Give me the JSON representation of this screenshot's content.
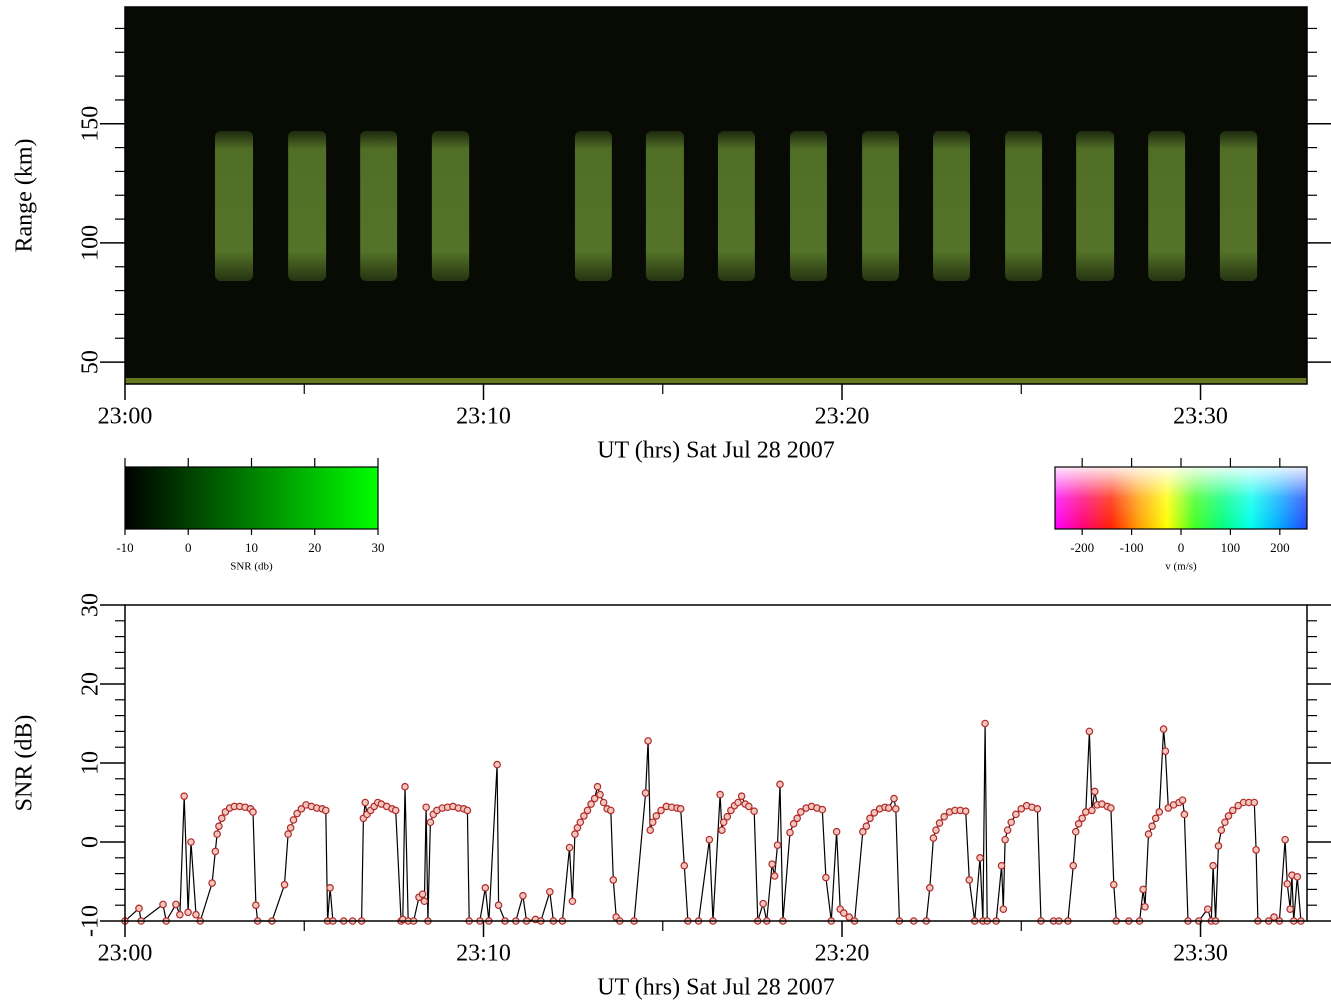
{
  "chart_data": [
    {
      "type": "heatmap",
      "xlabel": "UT (hrs) Sat Jul 28 2007",
      "ylabel": "Range (km)",
      "xlim": [
        0,
        32.97
      ],
      "xticks": [
        {
          "value": 0,
          "label": "23:00"
        },
        {
          "value": 10,
          "label": "23:10"
        },
        {
          "value": 20,
          "label": "23:20"
        },
        {
          "value": 30,
          "label": "23:30"
        }
      ],
      "xminorticks": [
        5,
        15,
        25
      ],
      "ylim": [
        40.8,
        199
      ],
      "yticks": [
        50,
        100,
        150
      ],
      "yminorticks": [
        60,
        70,
        80,
        90,
        110,
        120,
        130,
        140,
        160,
        170,
        180,
        190
      ],
      "background_color": "#070b04",
      "echo_color": "#5d7f2c",
      "echoes": [
        {
          "start": 2.51,
          "end": 3.57,
          "range": [
            84,
            147
          ]
        },
        {
          "start": 4.55,
          "end": 5.61,
          "range": [
            84,
            147
          ]
        },
        {
          "start": 6.56,
          "end": 7.59,
          "range": [
            84,
            147
          ]
        },
        {
          "start": 8.56,
          "end": 9.6,
          "range": [
            84,
            147
          ]
        },
        {
          "start": 12.55,
          "end": 13.58,
          "range": [
            84,
            147
          ]
        },
        {
          "start": 14.53,
          "end": 15.59,
          "range": [
            84,
            147
          ]
        },
        {
          "start": 16.54,
          "end": 17.57,
          "range": [
            84,
            147
          ]
        },
        {
          "start": 18.55,
          "end": 19.58,
          "range": [
            84,
            147
          ]
        },
        {
          "start": 20.56,
          "end": 21.59,
          "range": [
            84,
            147
          ]
        },
        {
          "start": 22.54,
          "end": 23.57,
          "range": [
            84,
            147
          ]
        },
        {
          "start": 24.55,
          "end": 25.58,
          "range": [
            84,
            147
          ]
        },
        {
          "start": 26.53,
          "end": 27.59,
          "range": [
            84,
            147
          ]
        },
        {
          "start": 28.54,
          "end": 29.57,
          "range": [
            84,
            147
          ]
        },
        {
          "start": 30.54,
          "end": 31.58,
          "range": [
            84,
            147
          ]
        }
      ],
      "colorbars": [
        {
          "label": "SNR (db)",
          "lim": [
            -10,
            30
          ],
          "ticks": [
            -10,
            0,
            10,
            20,
            30
          ],
          "colors": [
            "#000000",
            "#00ff00"
          ]
        },
        {
          "label": "v (m/s)",
          "lim": [
            -255,
            255
          ],
          "ticks": [
            -200,
            -100,
            0,
            100,
            200
          ],
          "colors": [
            "#ff00ff",
            "#ff0077",
            "#ff2000",
            "#ffa000",
            "#ffff00",
            "#40ff20",
            "#00ff80",
            "#00ffee",
            "#00aaff",
            "#2244ff"
          ]
        }
      ]
    },
    {
      "type": "line",
      "xlabel": "UT (hrs) Sat Jul 28 2007",
      "ylabel": "SNR (dB)",
      "xlim": [
        0,
        32.97
      ],
      "xticks": [
        {
          "value": 0,
          "label": "23:00"
        },
        {
          "value": 10,
          "label": "23:10"
        },
        {
          "value": 20,
          "label": "23:20"
        },
        {
          "value": 30,
          "label": "23:30"
        }
      ],
      "xminorticks": [
        5,
        15,
        25
      ],
      "ylim": [
        -10,
        30
      ],
      "yticks": [
        -10,
        0,
        10,
        20,
        30
      ],
      "yminorticks": [
        -8,
        -6,
        -4,
        -2,
        2,
        4,
        6,
        8,
        12,
        14,
        16,
        18,
        22,
        24,
        26,
        28
      ],
      "line_color": "#000000",
      "marker_color": "#b02a2a",
      "x": [
        0.0,
        0.39,
        0.45,
        1.06,
        1.15,
        1.42,
        1.53,
        1.65,
        1.76,
        1.84,
        1.98,
        2.1,
        2.43,
        2.52,
        2.57,
        2.62,
        2.7,
        2.8,
        2.92,
        3.05,
        3.2,
        3.35,
        3.5,
        3.57,
        3.65,
        3.7,
        4.1,
        4.45,
        4.55,
        4.62,
        4.7,
        4.8,
        4.92,
        5.05,
        5.2,
        5.35,
        5.5,
        5.6,
        5.65,
        5.72,
        5.8,
        6.1,
        6.35,
        6.6,
        6.65,
        6.7,
        6.75,
        6.85,
        6.95,
        7.05,
        7.15,
        7.3,
        7.45,
        7.55,
        7.7,
        7.75,
        7.81,
        7.9,
        8.05,
        8.2,
        8.3,
        8.35,
        8.4,
        8.45,
        8.52,
        8.6,
        8.7,
        8.85,
        9,
        9.15,
        9.3,
        9.45,
        9.55,
        9.6,
        9.9,
        10.05,
        10.15,
        10.38,
        10.42,
        10.6,
        10.9,
        11.1,
        11.2,
        11.45,
        11.6,
        11.85,
        11.95,
        12.2,
        12.4,
        12.48,
        12.55,
        12.62,
        12.7,
        12.8,
        12.9,
        13,
        13.1,
        13.18,
        13.25,
        13.35,
        13.45,
        13.55,
        13.62,
        13.7,
        13.8,
        14.2,
        14.52,
        14.59,
        14.65,
        14.72,
        14.82,
        14.95,
        15.1,
        15.25,
        15.4,
        15.5,
        15.6,
        15.7,
        16,
        16.3,
        16.4,
        16.6,
        16.65,
        16.7,
        16.8,
        16.9,
        17,
        17.1,
        17.2,
        17.3,
        17.4,
        17.55,
        17.65,
        17.8,
        17.9,
        18.05,
        18.12,
        18.2,
        18.27,
        18.35,
        18.55,
        18.65,
        18.75,
        18.85,
        19,
        19.15,
        19.3,
        19.45,
        19.55,
        19.7,
        19.85,
        19.95,
        20.05,
        20.2,
        20.35,
        20.58,
        20.68,
        20.78,
        20.9,
        21.05,
        21.2,
        21.3,
        21.45,
        21.5,
        21.6,
        22,
        22.35,
        22.45,
        22.55,
        22.62,
        22.72,
        22.85,
        23,
        23.15,
        23.3,
        23.45,
        23.55,
        23.7,
        23.85,
        23.93,
        23.99,
        24.05,
        24.3,
        24.45,
        24.5,
        24.55,
        24.62,
        24.72,
        24.85,
        25,
        25.15,
        25.3,
        25.45,
        25.55,
        25.9,
        26.05,
        26.3,
        26.45,
        26.52,
        26.6,
        26.7,
        26.8,
        26.9,
        26.97,
        27.05,
        27.12,
        27.25,
        27.4,
        27.5,
        27.58,
        27.65,
        28,
        28.3,
        28.4,
        28.45,
        28.55,
        28.65,
        28.75,
        28.85,
        28.97,
        29.02,
        29.1,
        29.25,
        29.4,
        29.5,
        29.55,
        29.65,
        29.95,
        30.2,
        30.3,
        30.35,
        30.42,
        30.5,
        30.58,
        30.68,
        30.78,
        30.9,
        31.05,
        31.2,
        31.35,
        31.5,
        31.55,
        31.6,
        31.9,
        32.05,
        32.2,
        32.36,
        32.42,
        32.5,
        32.55,
        32.6,
        32.7,
        32.8
      ],
      "values": [
        -10,
        -8.4,
        -10,
        -7.9,
        -10,
        -7.9,
        -9.2,
        5.8,
        -8.9,
        0,
        -9.2,
        -10,
        -5.2,
        -1.2,
        1,
        2,
        3,
        3.8,
        4.3,
        4.5,
        4.5,
        4.4,
        4.2,
        3.8,
        -8,
        -10,
        -10,
        -5.4,
        1,
        1.8,
        2.8,
        3.6,
        4.2,
        4.7,
        4.5,
        4.3,
        4.2,
        4,
        -10,
        -5.8,
        -10,
        -10,
        -10,
        -10,
        3,
        5,
        3.5,
        4,
        4.5,
        5,
        4.8,
        4.5,
        4.2,
        4,
        -10,
        -9.8,
        7,
        -10,
        -10,
        -7,
        -6.6,
        -7.5,
        4.4,
        -10,
        2.5,
        3.5,
        4,
        4.3,
        4.4,
        4.5,
        4.3,
        4.2,
        4,
        -10,
        -10,
        -5.8,
        -10,
        9.8,
        -8,
        -10,
        -10,
        -6.8,
        -10,
        -9.8,
        -10,
        -6.3,
        -10,
        -10,
        -0.7,
        -7.5,
        1,
        1.8,
        2.5,
        3.3,
        4,
        4.8,
        5.5,
        7,
        6,
        5,
        4.2,
        4,
        -4.8,
        -9.5,
        -10,
        -10,
        6.2,
        12.8,
        1.5,
        2.5,
        3.3,
        4,
        4.5,
        4.4,
        4.3,
        4.2,
        -3,
        -10,
        -10,
        0.3,
        -10,
        6,
        1.5,
        2.5,
        3.2,
        4,
        4.6,
        5,
        5.8,
        4.8,
        4.5,
        3.9,
        -10,
        -7.8,
        -10,
        -2.8,
        -4.3,
        -0.4,
        7.3,
        -10,
        1.2,
        2.3,
        3,
        3.8,
        4.3,
        4.5,
        4.3,
        4.1,
        -4.5,
        -10,
        1.3,
        -8.5,
        -9,
        -9.5,
        -10,
        1.3,
        2,
        3,
        3.7,
        4.2,
        4.4,
        4.3,
        5.5,
        4.2,
        -10,
        -10,
        -10,
        -5.8,
        0.5,
        1.5,
        2.4,
        3.2,
        3.8,
        4,
        4,
        3.9,
        -4.8,
        -10,
        -2,
        -10,
        15,
        -10,
        -10,
        -3,
        -8.5,
        0.3,
        1.5,
        2.5,
        3.5,
        4.2,
        4.6,
        4.4,
        4.2,
        -10,
        -10,
        -10,
        -10,
        -3,
        1.3,
        2.3,
        3,
        3.8,
        14,
        4,
        6.4,
        4.7,
        4.8,
        4.5,
        4.3,
        -5.4,
        -10,
        -10,
        -10,
        -6,
        -8.2,
        1,
        2,
        3,
        3.8,
        14.3,
        11.5,
        4.3,
        4.7,
        5,
        5.3,
        3.5,
        -10,
        -10,
        -8.5,
        -10,
        -3,
        -10,
        -0.5,
        1.5,
        2.5,
        3.3,
        4,
        4.6,
        5,
        5,
        5,
        -1,
        -10,
        -10,
        -9.5,
        -10,
        0.3,
        -5.3,
        -8.5,
        -4.2,
        -10,
        -4.4,
        -10
      ]
    }
  ]
}
